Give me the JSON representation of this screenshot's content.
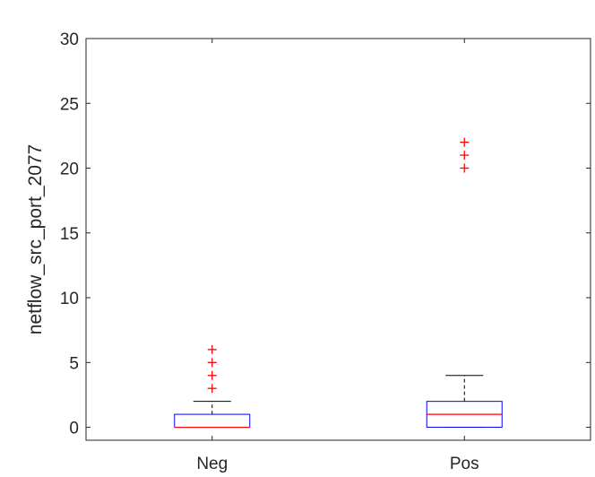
{
  "chart_data": {
    "type": "box",
    "ylabel": "netflow_src_port_2077",
    "ylim": [
      -1,
      30
    ],
    "yticks": [
      0,
      5,
      10,
      15,
      20,
      25,
      30
    ],
    "ytick_labels": [
      "0",
      "5",
      "10",
      "15",
      "20",
      "25",
      "30"
    ],
    "categories": [
      "Neg",
      "Pos"
    ],
    "grid": false,
    "box_color": "#0000ff",
    "median_color": "#ff0000",
    "outlier_color": "#ff0000",
    "whisker_color": "#000000",
    "boxes": [
      {
        "name": "Neg",
        "whisker_low": 0,
        "q1": 0,
        "median": 0,
        "q3": 1,
        "whisker_high": 2,
        "outliers": [
          3,
          4,
          5,
          6
        ]
      },
      {
        "name": "Pos",
        "whisker_low": 0,
        "q1": 0,
        "median": 1,
        "q3": 2,
        "whisker_high": 4,
        "outliers": [
          20,
          21,
          22
        ]
      }
    ]
  }
}
